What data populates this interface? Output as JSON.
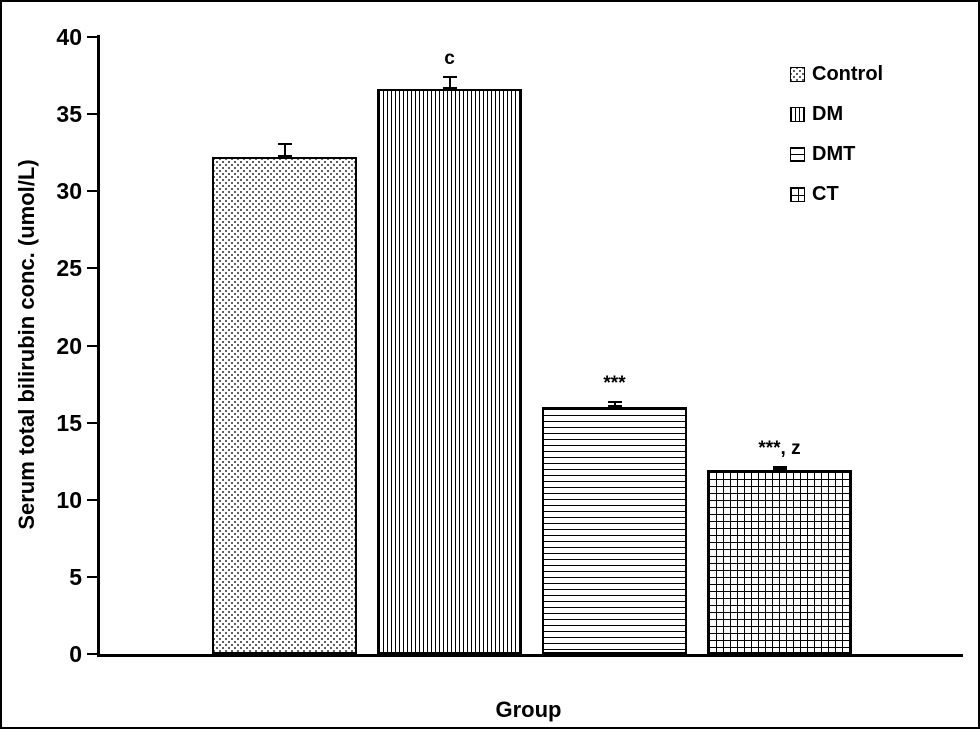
{
  "chart_data": {
    "type": "bar",
    "title": "",
    "xlabel": "Group",
    "ylabel": "Serum total bilirubin conc. (umol/L)",
    "ylim": [
      0,
      40
    ],
    "ytick_step": 5,
    "grid": false,
    "categories": [
      "Control",
      "DM",
      "DMT",
      "CT"
    ],
    "values": [
      32.2,
      36.6,
      16.0,
      11.9
    ],
    "errors": [
      0.9,
      0.9,
      0.4,
      0.3
    ],
    "annotations": [
      "",
      "c",
      "***",
      "***, z"
    ],
    "patterns": [
      "dots",
      "vlines",
      "hlines",
      "grid"
    ],
    "legend": [
      "Control",
      "DM",
      "DMT",
      "CT"
    ],
    "legend_position": "top-right"
  },
  "colors": {
    "bar_border": "#000000",
    "axis": "#000000",
    "background": "#ffffff",
    "text": "#000000"
  }
}
